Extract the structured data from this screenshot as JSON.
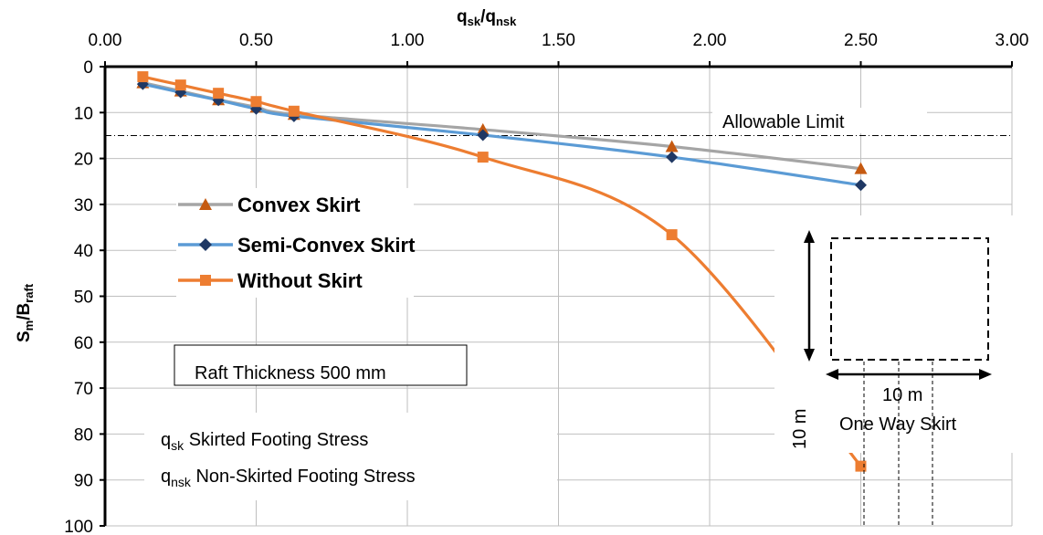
{
  "chart_data": {
    "type": "line",
    "xlabel": {
      "main": "q",
      "sub1": "sk",
      "sep": "/q",
      "sub2": "nsk"
    },
    "ylabel": {
      "main": "S",
      "sub1": "m",
      "sep": "/B",
      "sub2": "raft"
    },
    "xlim": [
      0,
      3
    ],
    "ylim": [
      0,
      100
    ],
    "y_inverted": true,
    "x_axis_position": "top",
    "x_ticks": [
      "0.00",
      "0.50",
      "1.00",
      "1.50",
      "2.00",
      "2.50",
      "3.00"
    ],
    "y_ticks": [
      "0",
      "10",
      "20",
      "30",
      "40",
      "50",
      "60",
      "70",
      "80",
      "90",
      "100"
    ],
    "grid": true,
    "legend_position": "left",
    "series": [
      {
        "name": "Convex Skirt",
        "marker": "triangle",
        "line_color": "#a5a5a5",
        "marker_color": "#c55a11",
        "x": [
          0.125,
          0.25,
          0.375,
          0.5,
          0.625,
          1.25,
          1.875,
          2.5
        ],
        "y": [
          3.5,
          5.3,
          7.2,
          8.8,
          10.4,
          13.7,
          17.4,
          22.2
        ]
      },
      {
        "name": "Semi-Convex Skirt",
        "marker": "diamond",
        "line_color": "#5b9bd5",
        "marker_color": "#1f3864",
        "x": [
          0.125,
          0.25,
          0.375,
          0.5,
          0.625,
          1.25,
          1.875,
          2.5
        ],
        "y": [
          3.8,
          5.6,
          7.3,
          9.2,
          10.8,
          14.9,
          19.7,
          25.8
        ]
      },
      {
        "name": "Without Skirt",
        "marker": "square",
        "line_color": "#ed7d31",
        "marker_color": "#ed7d31",
        "x": [
          0.125,
          0.25,
          0.375,
          0.5,
          0.625,
          1.25,
          1.875,
          2.5
        ],
        "y": [
          2.2,
          4.0,
          5.8,
          7.6,
          9.7,
          19.7,
          36.6,
          87.0
        ]
      }
    ],
    "allowable_limit": {
      "label": "Allowable Limit",
      "y": 15
    },
    "annotations": {
      "raft": "Raft Thickness 500 mm",
      "qsk_symbol": "q",
      "qsk_sub": "sk",
      "qsk_text": "Skirted Footing Stress",
      "qnsk_symbol": "q",
      "qnsk_sub": "nsk",
      "qnsk_text": "Non-Skirted Footing Stress",
      "width_dim": "10 m",
      "height_dim": "10 m",
      "skirt_type": "One Way Skirt"
    }
  }
}
